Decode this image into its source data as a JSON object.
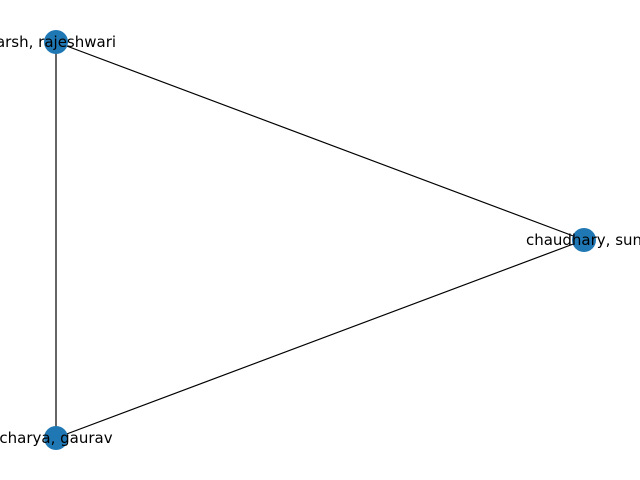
{
  "graph": {
    "node_color": "#1f77b4",
    "edge_color": "#000000",
    "nodes": [
      {
        "id": "n1",
        "label": "arsh, rajeshwari"
      },
      {
        "id": "n2",
        "label": "chaudhary, sun"
      },
      {
        "id": "n3",
        "label": "charya, gaurav"
      }
    ],
    "edges": [
      {
        "source": "n1",
        "target": "n2"
      },
      {
        "source": "n1",
        "target": "n3"
      },
      {
        "source": "n2",
        "target": "n3"
      }
    ]
  }
}
